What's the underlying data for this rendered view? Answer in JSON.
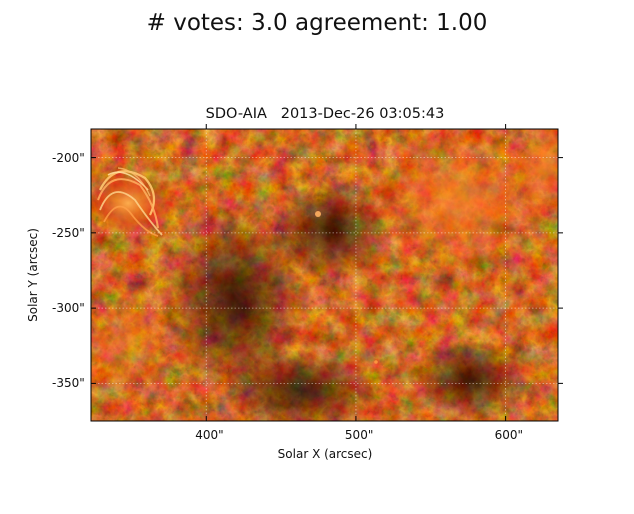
{
  "figure": {
    "suptitle": "# votes: 3.0 agreement: 1.00",
    "image_title": "SDO-AIA   2013-Dec-26 03:05:43",
    "xlabel": "Solar X (arcsec)",
    "ylabel": "Solar Y (arcsec)",
    "colormap_colors": [
      "#1a0300",
      "#5a0c00",
      "#a82200",
      "#e04a10",
      "#ff9a40",
      "#ffd890"
    ]
  },
  "axes": {
    "x_ticks": [
      {
        "value": 400,
        "label": "400\""
      },
      {
        "value": 500,
        "label": "500\""
      },
      {
        "value": 600,
        "label": "600\""
      }
    ],
    "y_ticks": [
      {
        "value": -200,
        "label": "-200\""
      },
      {
        "value": -250,
        "label": "-250\""
      },
      {
        "value": -300,
        "label": "-300\""
      },
      {
        "value": -350,
        "label": "-350\""
      }
    ],
    "xlim": [
      323,
      635
    ],
    "ylim": [
      -375,
      -181
    ],
    "grid": true
  }
}
